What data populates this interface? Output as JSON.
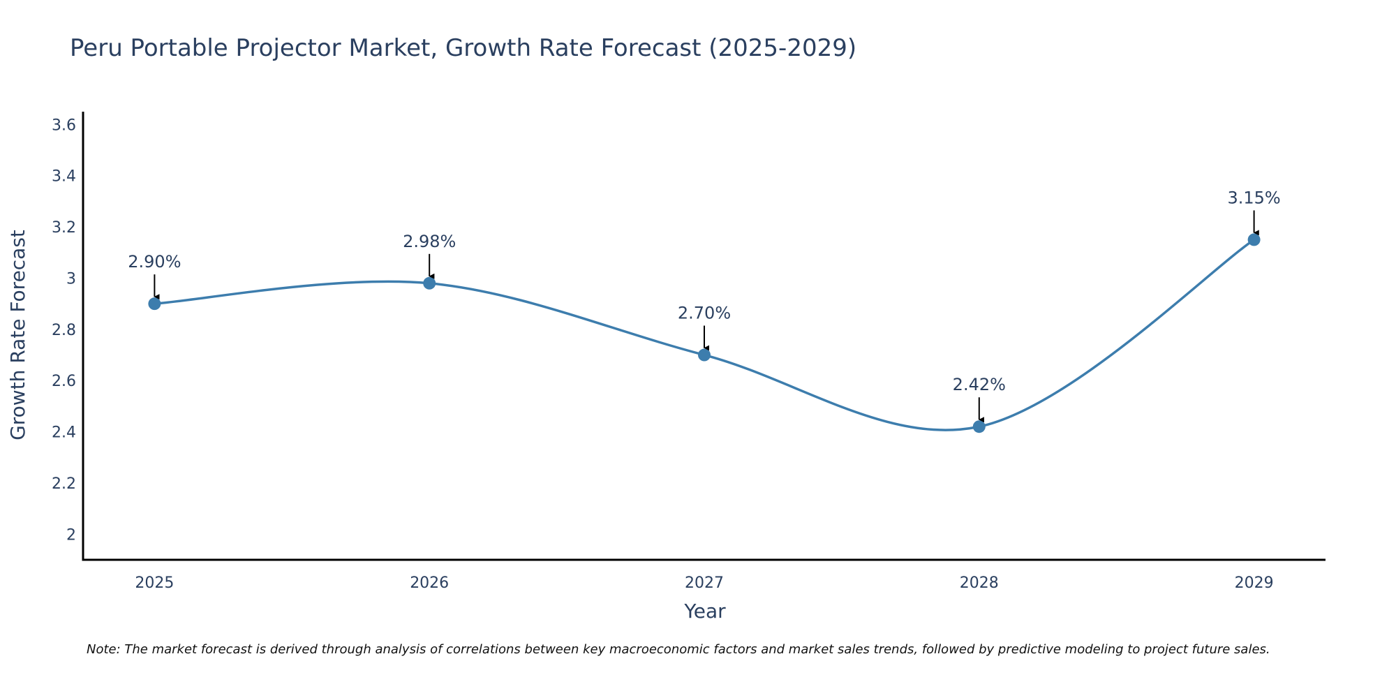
{
  "chart_data": {
    "type": "line",
    "title": "Peru Portable Projector Market, Growth Rate Forecast (2025-2029)",
    "xlabel": "Year",
    "ylabel": "Growth Rate Forecast",
    "categories": [
      "2025",
      "2026",
      "2027",
      "2028",
      "2029"
    ],
    "series": [
      {
        "name": "Growth Rate Forecast",
        "values": [
          2.9,
          2.98,
          2.7,
          2.42,
          3.15
        ],
        "labels": [
          "2.90%",
          "2.98%",
          "2.70%",
          "2.42%",
          "3.15%"
        ],
        "color": "#3d7dad"
      }
    ],
    "ylim": [
      1.9,
      3.65
    ],
    "yticks": [
      2,
      2.2,
      2.4,
      2.6,
      2.8,
      3,
      3.2,
      3.4,
      3.6
    ],
    "ytick_labels": [
      "2",
      "2.2",
      "2.4",
      "2.6",
      "2.8",
      "3",
      "3.2",
      "3.4",
      "3.6"
    ],
    "xlim": [
      -0.26,
      4.26
    ],
    "grid": false,
    "legend": "none",
    "line_shape": "spline"
  },
  "note": "Note: The market forecast is derived through analysis of correlations between key macroeconomic factors and market sales trends, followed by predictive modeling to project future sales."
}
